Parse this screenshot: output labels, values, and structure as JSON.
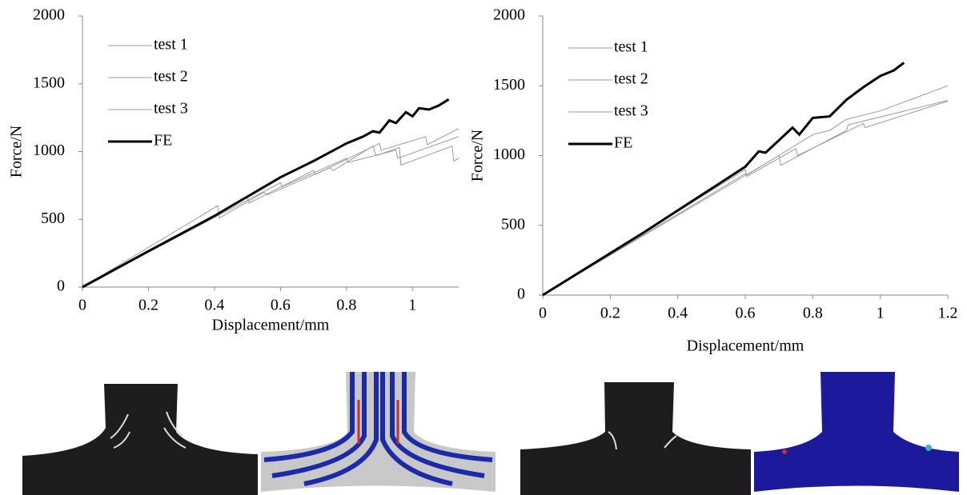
{
  "chart_data": [
    {
      "type": "line",
      "x_label": "Displacement/mm",
      "y_label": "Force/N",
      "xlim": [
        0,
        1.14
      ],
      "xticks": [
        0,
        0.2,
        0.4,
        0.6,
        0.8,
        1
      ],
      "ylim": [
        0,
        2000
      ],
      "yticks": [
        0,
        500,
        1000,
        1500,
        2000
      ],
      "series": [
        {
          "name": "test 1",
          "color": "#9a9a9a",
          "x": [
            0,
            0.41,
            0.415,
            0.55,
            0.56,
            0.75,
            0.76,
            0.88,
            0.89,
            0.96,
            0.965,
            1.12,
            1.125,
            1.14
          ],
          "values": [
            0,
            600,
            510,
            700,
            680,
            880,
            860,
            1040,
            970,
            1030,
            900,
            1040,
            930,
            950
          ]
        },
        {
          "name": "test 2",
          "color": "#9a9a9a",
          "x": [
            0,
            0.5,
            0.505,
            0.7,
            0.705,
            0.9,
            0.905,
            1.04,
            1.045,
            1.14
          ],
          "values": [
            0,
            660,
            620,
            860,
            830,
            1060,
            1010,
            1110,
            1050,
            1170
          ]
        },
        {
          "name": "test 3",
          "color": "#9a9a9a",
          "x": [
            0,
            0.6,
            0.605,
            0.8,
            0.805,
            0.95,
            0.955,
            1.14
          ],
          "values": [
            0,
            770,
            740,
            950,
            920,
            1010,
            950,
            1110
          ]
        },
        {
          "name": "FE",
          "color": "#000000",
          "x": [
            0,
            0.2,
            0.4,
            0.6,
            0.7,
            0.8,
            0.85,
            0.88,
            0.9,
            0.93,
            0.95,
            0.98,
            1,
            1.02,
            1.05,
            1.08,
            1.11
          ],
          "values": [
            0,
            265,
            525,
            810,
            930,
            1060,
            1110,
            1150,
            1140,
            1230,
            1210,
            1290,
            1260,
            1320,
            1310,
            1340,
            1385
          ]
        }
      ]
    },
    {
      "type": "line",
      "x_label": "Displacement/mm",
      "y_label": "Force/N",
      "xlim": [
        0,
        1.2
      ],
      "xticks": [
        0,
        0.2,
        0.4,
        0.6,
        0.8,
        1,
        1.2
      ],
      "ylim": [
        0,
        2000
      ],
      "yticks": [
        0,
        500,
        1000,
        1500,
        2000
      ],
      "series": [
        {
          "name": "test 1",
          "color": "#9a9a9a",
          "x": [
            0,
            0.6,
            0.605,
            0.8,
            0.85,
            0.9,
            1,
            1.2
          ],
          "values": [
            0,
            900,
            860,
            1150,
            1180,
            1260,
            1320,
            1500
          ]
        },
        {
          "name": "test 2",
          "color": "#9a9a9a",
          "x": [
            0,
            0.7,
            0.705,
            0.9,
            0.905,
            1.2
          ],
          "values": [
            0,
            1000,
            930,
            1180,
            1220,
            1395
          ]
        },
        {
          "name": "test 3",
          "color": "#9a9a9a",
          "x": [
            0,
            0.6,
            0.605,
            0.75,
            0.755,
            0.95,
            0.955,
            1.2
          ],
          "values": [
            0,
            870,
            850,
            1050,
            1000,
            1230,
            1200,
            1390
          ]
        },
        {
          "name": "FE",
          "color": "#000000",
          "x": [
            0,
            0.3,
            0.6,
            0.64,
            0.66,
            0.7,
            0.74,
            0.76,
            0.8,
            0.85,
            0.9,
            0.95,
            1,
            1.04,
            1.07
          ],
          "values": [
            0,
            450,
            920,
            1030,
            1020,
            1110,
            1200,
            1150,
            1270,
            1280,
            1400,
            1490,
            1570,
            1610,
            1665
          ]
        }
      ]
    }
  ]
}
